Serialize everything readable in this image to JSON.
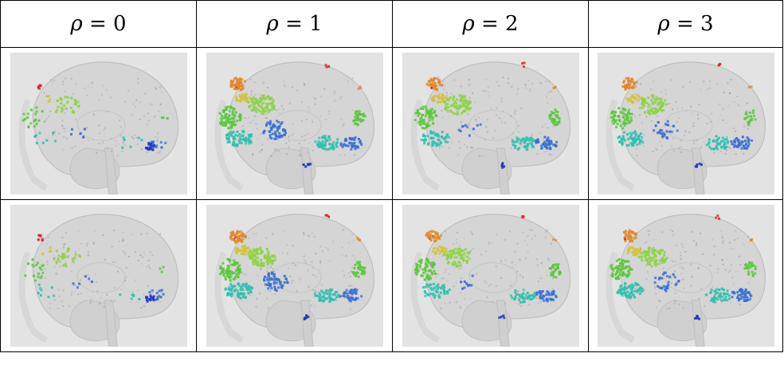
{
  "columns": [
    {
      "symbol": "ρ",
      "relation": "=",
      "value": "0"
    },
    {
      "symbol": "ρ",
      "relation": "=",
      "value": "1"
    },
    {
      "symbol": "ρ",
      "relation": "=",
      "value": "2"
    },
    {
      "symbol": "ρ",
      "relation": "=",
      "value": "3"
    }
  ],
  "rows": 2,
  "palette": {
    "background": "#e3e3e3",
    "brain": "#d4d4d4",
    "brain_outline": "#bcbcbc",
    "red": "#d7262b",
    "orange": "#e08a2d",
    "yellow": "#d2c43a",
    "green": "#5cc63d",
    "light_green": "#8fd24a",
    "teal": "#31c0b0",
    "blue": "#3a6fd3",
    "dark_blue": "#2233c8",
    "gray_dots": "#9a9a9a"
  }
}
